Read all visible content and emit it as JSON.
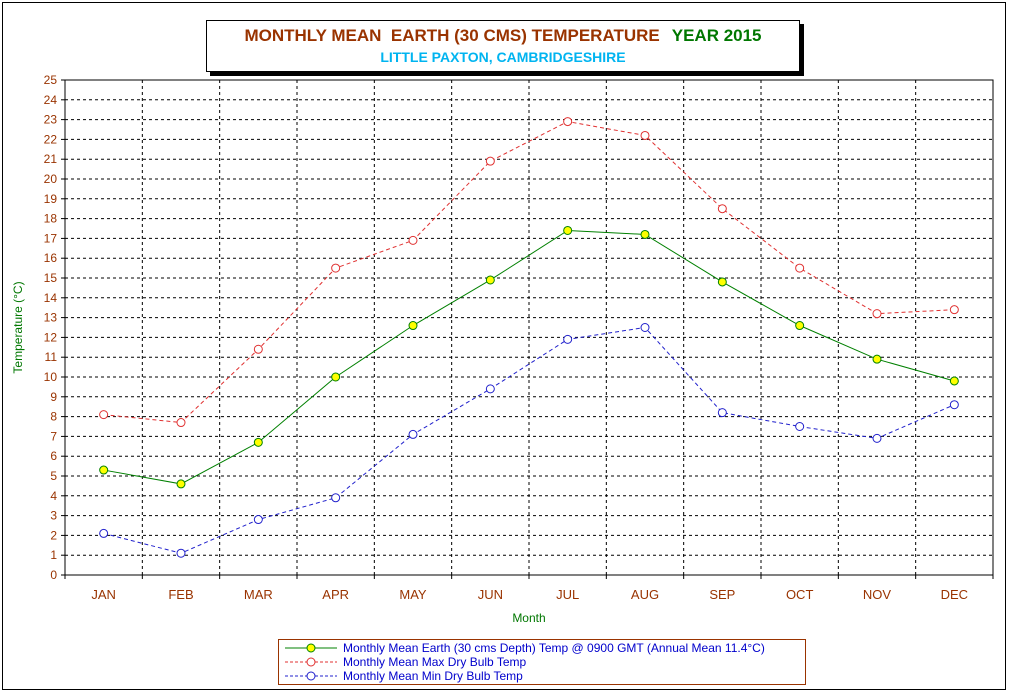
{
  "title": {
    "main": "MONTHLY MEAN  EARTH (30 CMS) TEMPERATURE",
    "year": "YEAR 2015",
    "subtitle": "LITTLE PAXTON, CAMBRIDGESHIRE"
  },
  "colors": {
    "earth_line": "#008000",
    "earth_marker": "#ffff00",
    "max_line": "#e03030",
    "min_line": "#2020cc",
    "tick_text": "#993300",
    "axis_title": "#007700",
    "legend_text": "#0000cc"
  },
  "chart_data": {
    "type": "line",
    "title": "MONTHLY MEAN  EARTH (30 CMS) TEMPERATURE  YEAR 2015",
    "subtitle": "LITTLE PAXTON, CAMBRIDGESHIRE",
    "xlabel": "Month",
    "ylabel": "Temperature (°C)",
    "ylim": [
      0,
      25
    ],
    "ytick_step": 1,
    "grid": true,
    "legend_position": "bottom",
    "categories": [
      "JAN",
      "FEB",
      "MAR",
      "APR",
      "MAY",
      "JUN",
      "JUL",
      "AUG",
      "SEP",
      "OCT",
      "NOV",
      "DEC"
    ],
    "series": [
      {
        "name": "Monthly Mean Earth (30 cms Depth) Temp @ 0900 GMT (Annual Mean 11.4°C)",
        "values": [
          5.3,
          4.6,
          6.7,
          10.0,
          12.6,
          14.9,
          17.4,
          17.2,
          14.8,
          12.6,
          10.9,
          9.8
        ],
        "style": "solid",
        "marker": "filled-circle"
      },
      {
        "name": "Monthly Mean Max Dry Bulb Temp",
        "values": [
          8.1,
          7.7,
          11.4,
          15.5,
          16.9,
          20.9,
          22.9,
          22.2,
          18.5,
          15.5,
          13.2,
          13.4
        ],
        "style": "dashed",
        "marker": "open-circle"
      },
      {
        "name": "Monthly Mean Min Dry Bulb Temp",
        "values": [
          2.1,
          1.1,
          2.8,
          3.9,
          7.1,
          9.4,
          11.9,
          12.5,
          8.2,
          7.5,
          6.9,
          8.6
        ],
        "style": "dashed",
        "marker": "open-circle"
      }
    ]
  }
}
